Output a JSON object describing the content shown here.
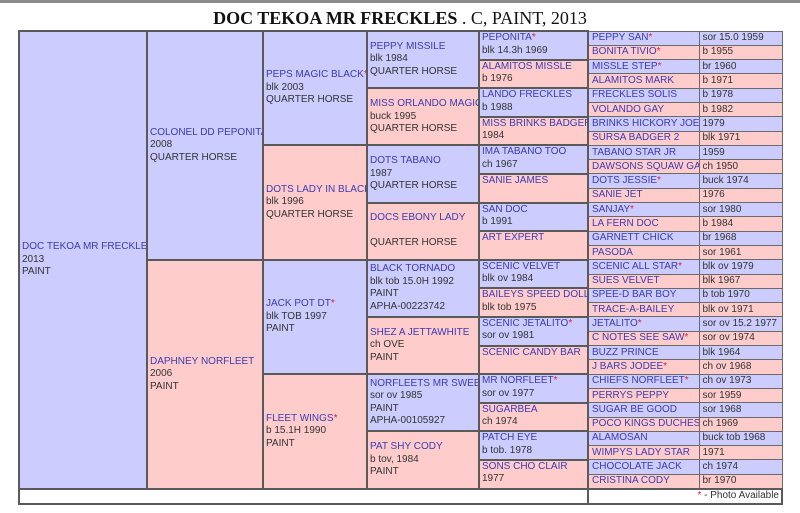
{
  "title": {
    "name": "DOC TEKOA MR FRECKLES",
    "suffix": " . C, PAINT, 2013"
  },
  "colors": {
    "sire_bg": "#ccccff",
    "dam_bg": "#ffcccc",
    "name_link": "#3b3bb3",
    "photo_star": "#e0203a"
  },
  "pedigree": {
    "gen1": [
      {
        "name": "DOC TEKOA MR FRECKLES",
        "photo": false,
        "details": [
          "2013",
          "PAINT"
        ]
      }
    ],
    "gen2": [
      {
        "name": "COLONEL DD PEPONITA",
        "photo": false,
        "details": [
          "2008",
          "QUARTER HORSE"
        ]
      },
      {
        "name": "DAPHNEY NORFLEET",
        "photo": false,
        "details": [
          "2006",
          "PAINT"
        ]
      }
    ],
    "gen3": [
      {
        "name": "PEPS MAGIC BLACK",
        "photo": true,
        "details": [
          "blk 2003",
          "QUARTER HORSE"
        ]
      },
      {
        "name": "DOTS LADY IN BLACK",
        "photo": false,
        "details": [
          "blk 1996",
          "QUARTER HORSE"
        ]
      },
      {
        "name": "JACK POT DT",
        "photo": true,
        "details": [
          "blk TOB 1997",
          "PAINT"
        ]
      },
      {
        "name": "FLEET WINGS",
        "photo": true,
        "details": [
          "b 15.1H 1990",
          "PAINT"
        ]
      }
    ],
    "gen4": [
      {
        "name": "PEPPY MISSILE",
        "photo": false,
        "details": [
          "blk 1984",
          "QUARTER HORSE"
        ]
      },
      {
        "name": "MISS ORLANDO MAGIC",
        "photo": false,
        "details": [
          "buck 1995",
          "QUARTER HORSE"
        ]
      },
      {
        "name": "DOTS TABANO",
        "photo": false,
        "details": [
          "1987",
          "QUARTER HORSE"
        ]
      },
      {
        "name": "DOCS EBONY LADY",
        "photo": false,
        "details": [
          "",
          "QUARTER HORSE"
        ]
      },
      {
        "name": "BLACK TORNADO",
        "photo": false,
        "details": [
          "blk tob 15.0H 1992",
          "PAINT",
          "APHA-00223742"
        ]
      },
      {
        "name": "SHEZ A JETTAWHITE",
        "photo": false,
        "details": [
          "ch OVE",
          "PAINT"
        ]
      },
      {
        "name": "NORFLEETS MR SWEET",
        "photo": false,
        "details": [
          "sor ov 1985",
          "PAINT",
          "APHA-00105927"
        ]
      },
      {
        "name": "PAT SHY CODY",
        "photo": false,
        "details": [
          "b tov, 1984",
          "PAINT"
        ]
      }
    ],
    "gen5": [
      {
        "name": "PEPONITA",
        "photo": true,
        "details": [
          "blk 14.3h 1969"
        ]
      },
      {
        "name": "ALAMITOS MISSLE",
        "photo": false,
        "details": [
          "b 1976"
        ]
      },
      {
        "name": "LANDO FRECKLES",
        "photo": false,
        "details": [
          "b 1988"
        ]
      },
      {
        "name": "MISS BRINKS BADGER",
        "photo": false,
        "details": [
          "1984"
        ]
      },
      {
        "name": "IMA TABANO TOO",
        "photo": false,
        "details": [
          "ch 1967"
        ]
      },
      {
        "name": "SANIE JAMES",
        "photo": false,
        "details": []
      },
      {
        "name": "SAN DOC",
        "photo": false,
        "details": [
          "b 1991"
        ]
      },
      {
        "name": "ART EXPERT",
        "photo": false,
        "details": []
      },
      {
        "name": "SCENIC VELVET",
        "photo": false,
        "details": [
          "blk ov 1984"
        ]
      },
      {
        "name": "BAILEYS SPEED DOLL",
        "photo": false,
        "details": [
          "blk tob 1975"
        ]
      },
      {
        "name": "SCENIC JETALITO",
        "photo": true,
        "details": [
          "sor ov 1981"
        ]
      },
      {
        "name": "SCENIC CANDY BAR",
        "photo": false,
        "details": []
      },
      {
        "name": "MR NORFLEET",
        "photo": true,
        "details": [
          "sor ov 1977"
        ]
      },
      {
        "name": "SUGARBEA",
        "photo": false,
        "details": [
          "ch 1974"
        ]
      },
      {
        "name": "PATCH EYE",
        "photo": false,
        "details": [
          "b tob. 1978"
        ]
      },
      {
        "name": "SONS CHO CLAIR",
        "photo": false,
        "details": [
          "1977"
        ]
      }
    ],
    "gen6": [
      {
        "name": "PEPPY SAN",
        "photo": true,
        "info": "sor 15.0 1959"
      },
      {
        "name": "BONITA TIVIO",
        "photo": true,
        "info": "b 1955"
      },
      {
        "name": "MISSLE STEP",
        "photo": true,
        "info": "br 1960"
      },
      {
        "name": "ALAMITOS MARK",
        "photo": false,
        "info": "b 1971"
      },
      {
        "name": "FRECKLES SOLIS",
        "photo": false,
        "info": "b 1978"
      },
      {
        "name": "VOLANDO GAY",
        "photo": false,
        "info": "b 1982"
      },
      {
        "name": "BRINKS HICKORY JOE",
        "photo": false,
        "info": "1979"
      },
      {
        "name": "SURSA BADGER 2",
        "photo": false,
        "info": "blk 1971"
      },
      {
        "name": "TABANO STAR JR",
        "photo": false,
        "info": "1959"
      },
      {
        "name": "DAWSONS SQUAW GAL",
        "photo": false,
        "info": "ch 1950"
      },
      {
        "name": "DOTS JESSIE",
        "photo": true,
        "info": "buck 1974"
      },
      {
        "name": "SANIE JET",
        "photo": false,
        "info": "1976"
      },
      {
        "name": "SANJAY",
        "photo": true,
        "info": "sor 1980"
      },
      {
        "name": "LA FERN DOC",
        "photo": false,
        "info": "b 1984"
      },
      {
        "name": "GARNETT CHICK",
        "photo": false,
        "info": "br 1968"
      },
      {
        "name": "PASODA",
        "photo": false,
        "info": "sor 1961"
      },
      {
        "name": "SCENIC ALL STAR",
        "photo": true,
        "info": "blk ov 1979"
      },
      {
        "name": "SUES VELVET",
        "photo": false,
        "info": "blk 1967"
      },
      {
        "name": "SPEE-D BAR BOY",
        "photo": false,
        "info": "b tob 1970"
      },
      {
        "name": "TRACE-A-BAILEY",
        "photo": false,
        "info": "blk ov 1971"
      },
      {
        "name": "JETALITO",
        "photo": true,
        "info": "sor ov 15.2 1977"
      },
      {
        "name": "C NOTES SEE SAW",
        "photo": true,
        "info": "sor ov 1974"
      },
      {
        "name": "BUZZ PRINCE",
        "photo": false,
        "info": "blk 1964"
      },
      {
        "name": "J BARS JODEE",
        "photo": true,
        "info": "ch ov 1968"
      },
      {
        "name": "CHIEFS NORFLEET",
        "photo": true,
        "info": "ch ov 1973"
      },
      {
        "name": "PERRYS PEPPY",
        "photo": false,
        "info": "sor 1959"
      },
      {
        "name": "SUGAR BE GOOD",
        "photo": false,
        "info": "sor 1968"
      },
      {
        "name": "POCO KINGS DUCHESS",
        "photo": false,
        "info": "ch 1969"
      },
      {
        "name": "ALAMOSAN",
        "photo": false,
        "info": "buck tob 1968"
      },
      {
        "name": "WIMPYS LADY STAR",
        "photo": false,
        "info": "1971"
      },
      {
        "name": "CHOCOLATE JACK",
        "photo": false,
        "info": "ch 1974"
      },
      {
        "name": "CRISTINA CODY",
        "photo": false,
        "info": "br 1970"
      }
    ]
  },
  "legend": {
    "star": "*",
    "text": " - Photo Available"
  }
}
